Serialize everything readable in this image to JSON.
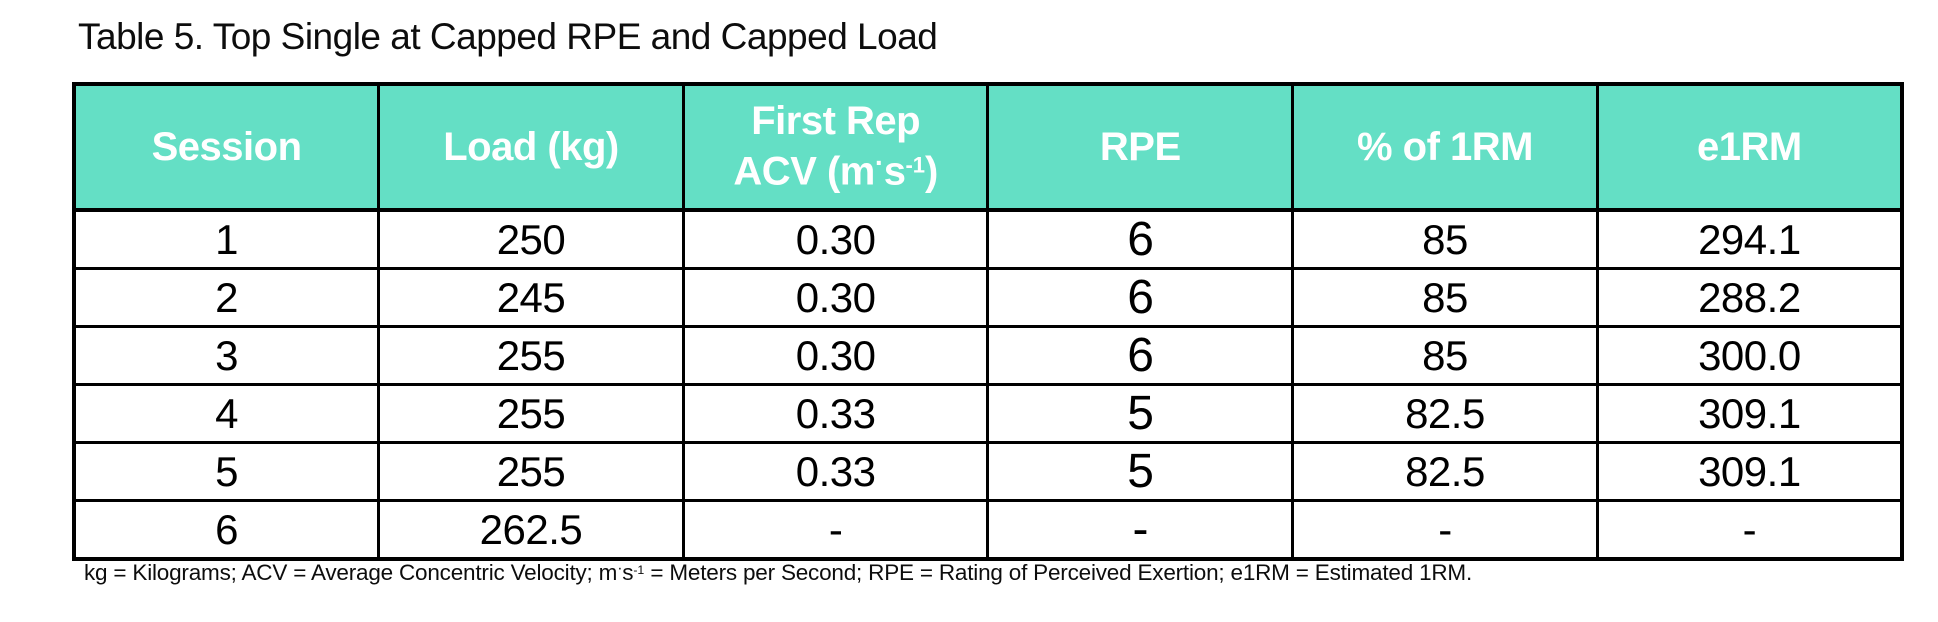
{
  "title": "Table 5. Top Single at Capped RPE and Capped Load",
  "accent_color": "#64dfc5",
  "border_color": "#000000",
  "table": {
    "headers": {
      "session": "Session",
      "load": "Load (kg)",
      "acv_line1": "First Rep",
      "acv_line2_pre": "ACV (m",
      "acv_dot": "·",
      "acv_s": "s",
      "acv_sup": "-1",
      "acv_close": ")",
      "rpe": "RPE",
      "pct_1rm": "% of 1RM",
      "e1rm": "e1RM"
    },
    "rows": [
      {
        "cells": [
          "1",
          "250",
          "0.30",
          "6",
          "85",
          "294.1"
        ]
      },
      {
        "cells": [
          "2",
          "245",
          "0.30",
          "6",
          "85",
          "288.2"
        ]
      },
      {
        "cells": [
          "3",
          "255",
          "0.30",
          "6",
          "85",
          "300.0"
        ]
      },
      {
        "cells": [
          "4",
          "255",
          "0.33",
          "5",
          "82.5",
          "309.1"
        ]
      },
      {
        "cells": [
          "5",
          "255",
          "0.33",
          "5",
          "82.5",
          "309.1"
        ]
      },
      {
        "cells": [
          "6",
          "262.5",
          "-",
          "-",
          "-",
          "-"
        ]
      }
    ]
  },
  "footnote": {
    "pre": "kg = Kilograms; ACV = Average Concentric Velocity; m",
    "dot": "·",
    "s": "s",
    "sup": "-1",
    "post": " = Meters per Second; RPE = Rating of Perceived Exertion; e1RM = Estimated 1RM."
  }
}
